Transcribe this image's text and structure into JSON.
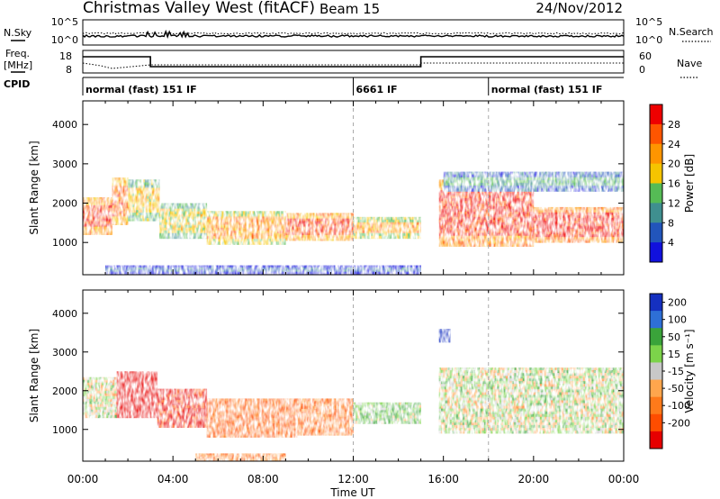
{
  "header": {
    "station": "Christmas Valley West (fitACF)",
    "beam": "Beam 15",
    "date": "24/Nov/2012"
  },
  "params": {
    "nsky_label": "N.Sky",
    "nsky_ticks": [
      "10^5",
      "10^0"
    ],
    "nsearch_label": "N.Search",
    "nsearch_ticks": [
      "10^5",
      "10^0"
    ],
    "freq_label_1": "Freq.",
    "freq_label_2": "[MHz]",
    "freq_ticks": [
      "18",
      "8"
    ],
    "nave_label": "Nave",
    "nave_ticks": [
      "60",
      "0"
    ],
    "cpid_label": "CPID"
  },
  "cpid_segments": [
    {
      "label": "normal (fast) 151 IF",
      "start_hr": 0
    },
    {
      "label": "6661 IF",
      "start_hr": 12
    },
    {
      "label": "normal (fast) 151 IF",
      "start_hr": 18
    }
  ],
  "colors": {
    "power_scale": [
      "#1111dd",
      "#2255bb",
      "#3f8f8f",
      "#55bb55",
      "#f5c400",
      "#ff9500",
      "#ff5500",
      "#ee0000"
    ],
    "velocity_scale": [
      "#1530c0",
      "#2e6fd6",
      "#3aa33a",
      "#7cd34a",
      "#c8c8c8",
      "#ffa64d",
      "#ff7a1a",
      "#ff4d00",
      "#e60000"
    ]
  },
  "chart_data": [
    {
      "type": "heatmap",
      "title": "Power",
      "xlabel": "",
      "ylabel": "Slant Range [km]",
      "xlim": [
        0,
        24
      ],
      "ylim": [
        180,
        4600
      ],
      "yticks": [
        1000,
        2000,
        3000,
        4000
      ],
      "colorbar": {
        "label": "Power [dB]",
        "ticks": [
          4,
          8,
          12,
          16,
          20,
          24,
          28
        ],
        "range": [
          0,
          32
        ]
      },
      "regions": [
        {
          "t0": 0.0,
          "t1": 1.3,
          "r0": 1200,
          "r1": 2150,
          "level": 0.92
        },
        {
          "t0": 1.3,
          "t1": 2.0,
          "r0": 1450,
          "r1": 2650,
          "level": 0.85
        },
        {
          "t0": 2.0,
          "t1": 3.4,
          "r0": 1550,
          "r1": 2600,
          "level": 0.6
        },
        {
          "t0": 3.4,
          "t1": 5.5,
          "r0": 1100,
          "r1": 2000,
          "level": 0.55
        },
        {
          "t0": 5.5,
          "t1": 9.0,
          "r0": 950,
          "r1": 1800,
          "level": 0.72
        },
        {
          "t0": 9.0,
          "t1": 12.0,
          "r0": 1050,
          "r1": 1750,
          "level": 0.9
        },
        {
          "t0": 12.0,
          "t1": 15.0,
          "r0": 1100,
          "r1": 1650,
          "level": 0.7
        },
        {
          "t0": 15.8,
          "t1": 20.0,
          "r0": 900,
          "r1": 2600,
          "level": 0.95
        },
        {
          "t0": 20.0,
          "t1": 24.0,
          "r0": 1000,
          "r1": 1900,
          "level": 0.97
        },
        {
          "t0": 16.0,
          "t1": 24.0,
          "r0": 2300,
          "r1": 2800,
          "level": 0.35
        },
        {
          "t0": 1.0,
          "t1": 15.0,
          "r0": 200,
          "r1": 420,
          "level": 0.15
        }
      ]
    },
    {
      "type": "heatmap",
      "title": "Velocity",
      "xlabel": "Time UT",
      "ylabel": "Slant Range [km]",
      "xlim": [
        0,
        24
      ],
      "ylim": [
        180,
        4600
      ],
      "yticks": [
        1000,
        2000,
        3000,
        4000
      ],
      "xticks": [
        "00:00",
        "04:00",
        "08:00",
        "12:00",
        "16:00",
        "20:00",
        "00:00"
      ],
      "colorbar": {
        "label": "Velocity [m s⁻¹]",
        "ticks": [
          200,
          100,
          50,
          15,
          -15,
          -50,
          -100,
          -200
        ],
        "range": [
          -250,
          250
        ]
      },
      "regions": [
        {
          "t0": 0.0,
          "t1": 1.5,
          "r0": 1300,
          "r1": 2350,
          "level": -5
        },
        {
          "t0": 1.5,
          "t1": 3.3,
          "r0": 1300,
          "r1": 2500,
          "level": -210
        },
        {
          "t0": 3.3,
          "t1": 5.5,
          "r0": 1050,
          "r1": 2050,
          "level": -170
        },
        {
          "t0": 5.5,
          "t1": 9.5,
          "r0": 800,
          "r1": 1800,
          "level": -90
        },
        {
          "t0": 9.5,
          "t1": 12.0,
          "r0": 850,
          "r1": 1800,
          "level": -70
        },
        {
          "t0": 12.0,
          "t1": 15.0,
          "r0": 1150,
          "r1": 1700,
          "level": 20
        },
        {
          "t0": 15.8,
          "t1": 24.0,
          "r0": 900,
          "r1": 2600,
          "level": 0
        },
        {
          "t0": 5.0,
          "t1": 9.0,
          "r0": 200,
          "r1": 380,
          "level": -60
        },
        {
          "t0": 15.8,
          "t1": 16.3,
          "r0": 3250,
          "r1": 3600,
          "level": 220
        }
      ]
    }
  ]
}
